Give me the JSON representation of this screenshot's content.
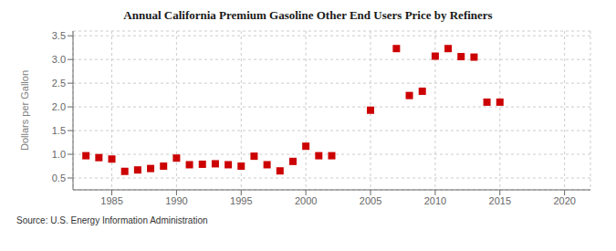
{
  "chart_data": {
    "type": "scatter",
    "title": "Annual California Premium Gasoline Other End Users Price by Refiners",
    "y_label": "Dollars per Gallon",
    "annotations": [
      "Source: U.S. Energy Information Administration"
    ],
    "x": [
      1983,
      1984,
      1985,
      1986,
      1987,
      1988,
      1989,
      1990,
      1991,
      1992,
      1993,
      1994,
      1995,
      1996,
      1997,
      1998,
      1999,
      2000,
      2001,
      2002,
      2005,
      2007,
      2008,
      2009,
      2010,
      2011,
      2012,
      2013,
      2014,
      2015
    ],
    "values": [
      0.97,
      0.93,
      0.9,
      0.64,
      0.67,
      0.7,
      0.75,
      0.92,
      0.78,
      0.79,
      0.8,
      0.78,
      0.75,
      0.96,
      0.78,
      0.65,
      0.85,
      1.17,
      0.97,
      0.97,
      1.93,
      3.23,
      2.24,
      2.33,
      3.07,
      3.23,
      3.06,
      3.05,
      2.1,
      2.1
    ],
    "color": "#cc0000",
    "marker": "square",
    "xlim": [
      1982,
      2022
    ],
    "xticks": [
      1985,
      1990,
      1995,
      2000,
      2005,
      2010,
      2015,
      2020
    ],
    "ylim": [
      0.25,
      3.6
    ],
    "yticks": [
      0.5,
      {
        "value": 1.0,
        "label": "1.0"
      },
      1.5,
      {
        "value": 2.0,
        "label": "2.0"
      },
      2.5,
      {
        "value": 3.0,
        "label": "3.0"
      },
      3.5
    ],
    "grid": true
  }
}
